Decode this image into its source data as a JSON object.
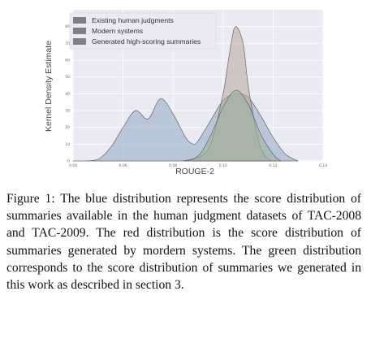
{
  "chart_data": {
    "type": "area",
    "xlabel": "ROUGE-2",
    "ylabel": "Kernel Density Estimate",
    "xlim": [
      0.04,
      0.14
    ],
    "ylim": [
      0,
      90
    ],
    "xticks": [
      "0.04",
      "0.06",
      "0.08",
      "0.10",
      "0.12",
      "0.14"
    ],
    "yticks": [
      "0",
      "10",
      "20",
      "30",
      "40",
      "50",
      "60",
      "70",
      "80"
    ],
    "grid": true,
    "legend_position": "top-left",
    "series": [
      {
        "name": "Existing human judgments",
        "color": "#8fa6c4",
        "x": [
          0.04,
          0.045,
          0.05,
          0.055,
          0.06,
          0.065,
          0.07,
          0.075,
          0.08,
          0.085,
          0.088,
          0.09,
          0.095,
          0.1,
          0.105,
          0.11,
          0.115,
          0.12,
          0.125,
          0.13
        ],
        "values": [
          0,
          0,
          1,
          8,
          20,
          30,
          25,
          37,
          28,
          14,
          10,
          12,
          24,
          36,
          40,
          38,
          27,
          14,
          4,
          0
        ]
      },
      {
        "name": "Modern systems",
        "color": "#b8a59d",
        "x": [
          0.084,
          0.09,
          0.095,
          0.1,
          0.103,
          0.105,
          0.108,
          0.11,
          0.113,
          0.115,
          0.118,
          0.12
        ],
        "values": [
          0,
          2,
          10,
          40,
          68,
          80,
          70,
          45,
          20,
          8,
          1,
          0
        ]
      },
      {
        "name": "Generated high-scoring summaries",
        "color": "#9bb59b",
        "x": [
          0.084,
          0.09,
          0.095,
          0.1,
          0.105,
          0.11,
          0.115,
          0.12,
          0.123
        ],
        "values": [
          0,
          3,
          15,
          32,
          42,
          34,
          16,
          4,
          0
        ]
      }
    ]
  },
  "caption": "Figure 1: The blue distribution represents the score distribution of summaries available in the human judgment datasets of TAC-2008 and TAC-2009. The red distribution is the score distribution of summaries generated by mordern systems. The green distribution corresponds to the score distribution of summaries we generated in this work as described in section 3."
}
